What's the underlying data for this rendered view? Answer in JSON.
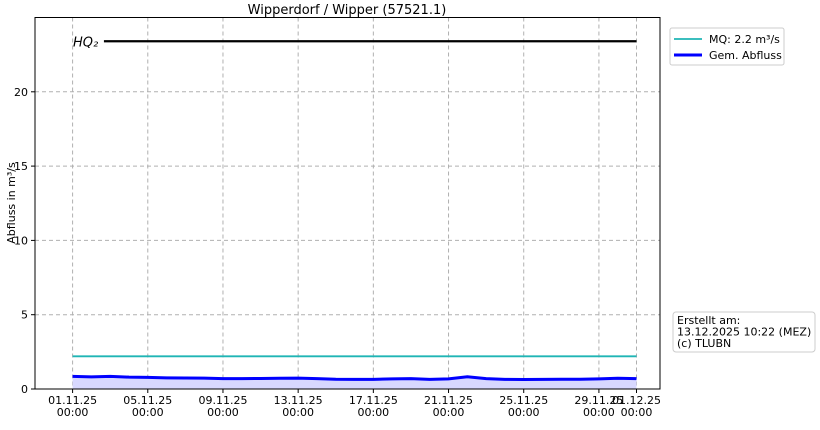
{
  "chart_data": {
    "type": "line",
    "title": "Wipperdorf / Wipper (57521.1)",
    "y_label": "Abfluss in m³/s",
    "xlim": [
      "2025-10-30T00:00",
      "2025-12-02T06:00"
    ],
    "xticks": [
      {
        "value": "2025-11-01T00:00",
        "label": "01.11.25\n00:00"
      },
      {
        "value": "2025-11-05T00:00",
        "label": "05.11.25\n00:00"
      },
      {
        "value": "2025-11-09T00:00",
        "label": "09.11.25\n00:00"
      },
      {
        "value": "2025-11-13T00:00",
        "label": "13.11.25\n00:00"
      },
      {
        "value": "2025-11-17T00:00",
        "label": "17.11.25\n00:00"
      },
      {
        "value": "2025-11-21T00:00",
        "label": "21.11.25\n00:00"
      },
      {
        "value": "2025-11-25T00:00",
        "label": "25.11.25\n00:00"
      },
      {
        "value": "2025-11-29T00:00",
        "label": "29.11.25\n00:00"
      },
      {
        "value": "2025-12-01T00:00",
        "label": "01.12.25\n00:00"
      }
    ],
    "ylim": [
      0,
      25
    ],
    "yticks": [
      0,
      5,
      10,
      15,
      20
    ],
    "grid": true,
    "legend": "outside-upper-right",
    "series": [
      {
        "name": "MQ: 2.2 m³/s",
        "color": "#1fb5b5",
        "x": [
          "2025-11-01T00:00",
          "2025-12-01T00:00"
        ],
        "values": [
          2.2,
          2.2
        ]
      },
      {
        "name": "Gem. Abfluss",
        "color": "#0000ff",
        "fill": "#d8d8ff",
        "x": [
          "2025-11-01T00:00",
          "2025-11-02T00:00",
          "2025-11-03T00:00",
          "2025-11-04T00:00",
          "2025-11-05T00:00",
          "2025-11-06T00:00",
          "2025-11-07T00:00",
          "2025-11-08T00:00",
          "2025-11-09T00:00",
          "2025-11-10T00:00",
          "2025-11-11T00:00",
          "2025-11-12T00:00",
          "2025-11-13T00:00",
          "2025-11-14T00:00",
          "2025-11-15T00:00",
          "2025-11-16T00:00",
          "2025-11-17T00:00",
          "2025-11-18T00:00",
          "2025-11-19T00:00",
          "2025-11-20T00:00",
          "2025-11-21T00:00",
          "2025-11-22T00:00",
          "2025-11-23T00:00",
          "2025-11-24T00:00",
          "2025-11-25T00:00",
          "2025-11-26T00:00",
          "2025-11-27T00:00",
          "2025-11-28T00:00",
          "2025-11-29T00:00",
          "2025-11-30T00:00",
          "2025-12-01T00:00"
        ],
        "values": [
          0.85,
          0.82,
          0.85,
          0.8,
          0.78,
          0.75,
          0.74,
          0.73,
          0.7,
          0.7,
          0.71,
          0.72,
          0.73,
          0.7,
          0.66,
          0.65,
          0.65,
          0.68,
          0.7,
          0.65,
          0.68,
          0.82,
          0.7,
          0.65,
          0.64,
          0.65,
          0.66,
          0.66,
          0.68,
          0.72,
          0.7
        ]
      }
    ],
    "reference_line": {
      "label": "HQ₂",
      "color": "#000000",
      "value": 23.4,
      "x": [
        "2025-11-02T16:00",
        "2025-12-01T00:00"
      ]
    },
    "annotation": [
      "Erstellt am:",
      "13.12.2025 10:22 (MEZ)",
      "(c) TLUBN"
    ]
  }
}
